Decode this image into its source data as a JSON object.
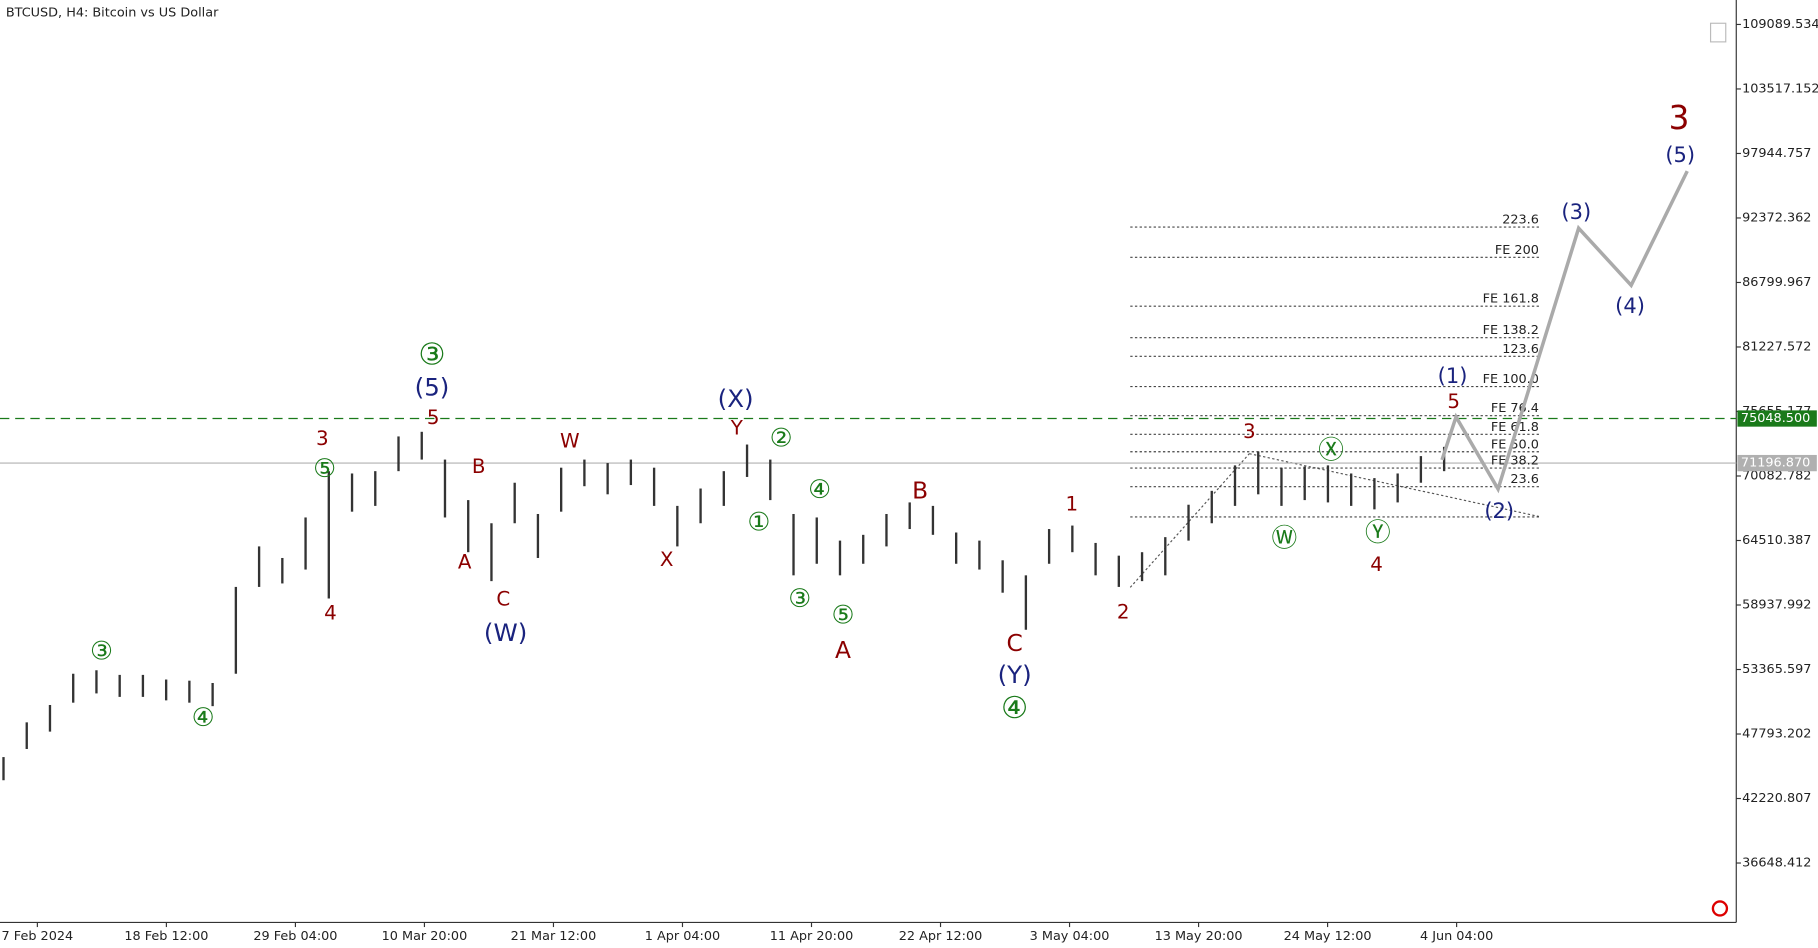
{
  "chart_data": {
    "type": "hilo",
    "title": "BTCUSD, H4:  Bitcoin vs US Dollar",
    "bar_color": "#333333",
    "low": [
      43800,
      46500,
      48000,
      50500,
      51300,
      51000,
      51000,
      50700,
      50500,
      50200,
      53000,
      60500,
      60800,
      62000,
      59500,
      67000,
      67500,
      70500,
      71500,
      66500,
      63500,
      61000,
      66000,
      63000,
      67000,
      69200,
      68500,
      69300,
      67500,
      64000,
      66000,
      67500,
      70000,
      68000,
      61500,
      62500,
      61500,
      62500,
      64000,
      65500,
      65000,
      62500,
      62000,
      60000,
      56800,
      62500,
      63500,
      61500,
      60500,
      61000,
      61500,
      64500,
      66000,
      67500,
      68500,
      67500,
      68000,
      67800,
      67500,
      67200,
      67800,
      69500,
      70500
    ],
    "high": [
      45800,
      48800,
      50300,
      53000,
      53300,
      52900,
      52900,
      52500,
      52400,
      52200,
      60500,
      64000,
      63000,
      66500,
      70500,
      70300,
      70500,
      73500,
      73900,
      71500,
      68000,
      66000,
      69500,
      66800,
      70800,
      71500,
      71200,
      71500,
      70800,
      67500,
      69000,
      70500,
      72800,
      71500,
      66800,
      66500,
      64500,
      65000,
      66800,
      67800,
      67500,
      65200,
      64500,
      62800,
      61500,
      65500,
      65800,
      64300,
      63200,
      63500,
      64800,
      67600,
      68800,
      71000,
      72200,
      70800,
      70900,
      71000,
      70300,
      69900,
      70300,
      71800,
      72600
    ],
    "ylim": [
      31518,
      111202
    ],
    "yticks": [
      109089.534,
      103517.152,
      97944.757,
      92372.362,
      86799.967,
      81227.572,
      75655.177,
      70082.782,
      64510.387,
      58937.992,
      53365.597,
      47793.202,
      42220.807,
      36648.412
    ],
    "xticks": [
      "7 Feb 2024",
      "18 Feb 12:00",
      "29 Feb 04:00",
      "10 Mar 20:00",
      "21 Mar 12:00",
      "1 Apr 04:00",
      "11 Apr 20:00",
      "22 Apr 12:00",
      "3 May 04:00",
      "13 May 20:00",
      "24 May 12:00",
      "4 Jun 04:00"
    ],
    "price_lines": [
      {
        "value": 75048.5,
        "label": "75048.500",
        "color": "#1a7a1a"
      },
      {
        "value": 71196.87,
        "label": "71196.870",
        "color": "#b0b0b0"
      }
    ],
    "fib_levels": [
      {
        "label": "223.6",
        "price": 91588
      },
      {
        "label": "FE 200",
        "price": 88973
      },
      {
        "label": "FE 161.8",
        "price": 84749
      },
      {
        "label": "FE 138.2",
        "price": 82033
      },
      {
        "label": "123.6",
        "price": 80424
      },
      {
        "label": "FE 100.0",
        "price": 77809
      },
      {
        "label": "FE 76.4",
        "price": 75294
      },
      {
        "label": "FE 61.8",
        "price": 73685
      },
      {
        "label": "FE 50.0",
        "price": 72176
      },
      {
        "label": "FE 38.2",
        "price": 70768
      },
      {
        "label": "23.6",
        "price": 69159
      }
    ],
    "fib_base": 66544,
    "projection": {
      "color": "#aaaaaa",
      "values": [
        71473,
        75194,
        68959,
        91487,
        86559,
        96416
      ]
    },
    "wave_labels": [
      {
        "color": "#8b0000",
        "texts": [
          "3",
          "4",
          "5",
          "B",
          "A",
          "C",
          "W",
          "X",
          "Y",
          "B",
          "A",
          "C",
          "1",
          "2",
          "3",
          "4",
          "5",
          "3"
        ]
      },
      {
        "color": "#1a237e",
        "texts": [
          "(5)",
          "(W)",
          "(X)",
          "(Y)",
          "(1)",
          "(2)",
          "(3)",
          "(4)",
          "(5)"
        ]
      },
      {
        "color": "#1a7a1a",
        "texts": [
          "③",
          "⑤",
          "③",
          "④",
          "②",
          "④",
          "①",
          "③",
          "⑤",
          "④",
          "Ⓦ",
          "Ⓧ",
          "Ⓨ"
        ]
      }
    ]
  }
}
